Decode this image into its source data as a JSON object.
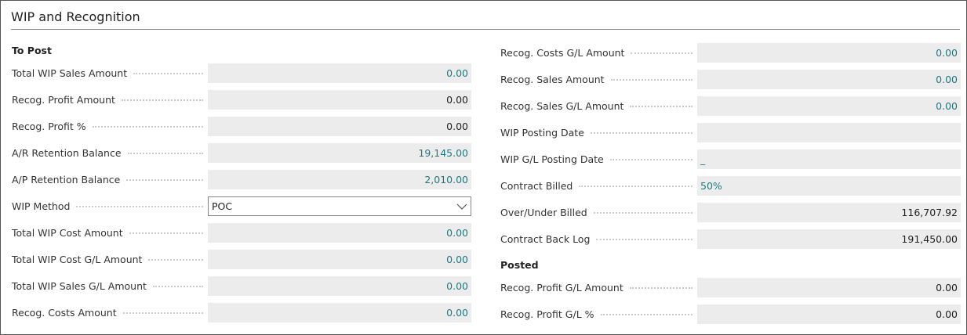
{
  "title": "WIP and Recognition",
  "left": {
    "sections": [
      {
        "heading": "To Post",
        "fields": [
          {
            "label": "Total WIP Sales Amount",
            "value": "0.00",
            "kind": "link"
          },
          {
            "label": "Recog. Profit Amount",
            "value": "0.00",
            "kind": "text"
          },
          {
            "label": "Recog. Profit %",
            "value": "0.00",
            "kind": "text"
          },
          {
            "label": "A/R Retention Balance",
            "value": "19,145.00",
            "kind": "link"
          },
          {
            "label": "A/P Retention Balance",
            "value": "2,010.00",
            "kind": "link"
          },
          {
            "label": "WIP Method",
            "value": "POC",
            "kind": "select"
          },
          {
            "label": "Total WIP Cost Amount",
            "value": "0.00",
            "kind": "link"
          },
          {
            "label": "Total WIP Cost G/L Amount",
            "value": "0.00",
            "kind": "link"
          },
          {
            "label": "Total WIP Sales G/L Amount",
            "value": "0.00",
            "kind": "link"
          },
          {
            "label": "Recog. Costs Amount",
            "value": "0.00",
            "kind": "link"
          }
        ]
      }
    ]
  },
  "right": {
    "sections": [
      {
        "fields": [
          {
            "label": "Recog. Costs G/L Amount",
            "value": "0.00",
            "kind": "link"
          },
          {
            "label": "Recog. Sales Amount",
            "value": "0.00",
            "kind": "link"
          },
          {
            "label": "Recog. Sales G/L Amount",
            "value": "0.00",
            "kind": "link"
          },
          {
            "label": "WIP Posting Date",
            "kind": "left"
          },
          {
            "label": "WIP G/L Posting Date",
            "value": "_",
            "kind": "left-link"
          },
          {
            "label": "Contract Billed",
            "value": "50%",
            "kind": "left-link"
          },
          {
            "label": "Over/Under Billed",
            "value": "116,707.92",
            "kind": "text"
          },
          {
            "label": "Contract Back Log",
            "value": "191,450.00",
            "kind": "text"
          }
        ]
      },
      {
        "heading": "Posted",
        "fields": [
          {
            "label": "Recog. Profit G/L Amount",
            "value": "0.00",
            "kind": "text"
          },
          {
            "label": "Recog. Profit G/L %",
            "value": "0.00",
            "kind": "text"
          }
        ]
      }
    ]
  }
}
